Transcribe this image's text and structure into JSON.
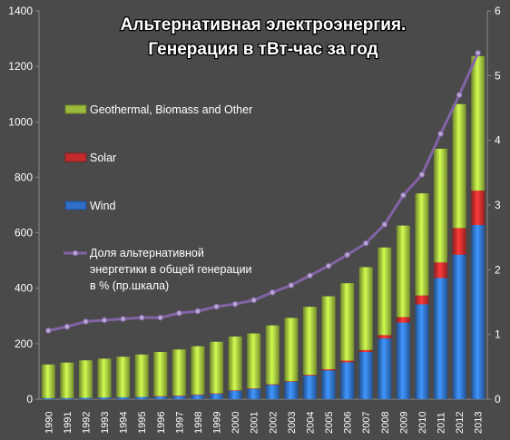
{
  "chart_data": {
    "type": "bar",
    "title_line1": "Альтернативная электроэнергия.",
    "title_line2": "Генерация в тВт-час за год",
    "categories": [
      "1990",
      "1991",
      "1992",
      "1993",
      "1994",
      "1995",
      "1996",
      "1997",
      "1998",
      "1999",
      "2000",
      "2001",
      "2002",
      "2003",
      "2004",
      "2005",
      "2006",
      "2007",
      "2008",
      "2009",
      "2010",
      "2011",
      "2012",
      "2013"
    ],
    "stacked": true,
    "left_axis": {
      "ylim": [
        0,
        1400
      ],
      "ticks": [
        0,
        200,
        400,
        600,
        800,
        1000,
        1200,
        1400
      ]
    },
    "right_axis": {
      "ylim": [
        0,
        6
      ],
      "ticks": [
        0,
        1,
        2,
        3,
        4,
        5,
        6
      ]
    },
    "series": [
      {
        "name": "Wind",
        "color": "#2f6fc8",
        "values": [
          4,
          4,
          5,
          6,
          7,
          8,
          10,
          12,
          16,
          20,
          31,
          38,
          52,
          63,
          85,
          104,
          133,
          170,
          219,
          276,
          342,
          437,
          521,
          628
        ]
      },
      {
        "name": "Solar",
        "color": "#c62b2b",
        "values": [
          0,
          0,
          0,
          0,
          0,
          0,
          1,
          1,
          1,
          1,
          1,
          1,
          2,
          2,
          3,
          4,
          6,
          7,
          12,
          20,
          32,
          56,
          96,
          124
        ]
      },
      {
        "name": "Geothermal, Biomass and Other",
        "color": "#9bbb3c",
        "values": [
          121,
          128,
          135,
          140,
          146,
          153,
          159,
          166,
          174,
          186,
          194,
          198,
          212,
          228,
          245,
          263,
          279,
          299,
          316,
          330,
          368,
          410,
          447,
          485
        ]
      }
    ],
    "line_series": {
      "name": "Доля альтернативной энергетики в общей генерации в % (пр.шкала)",
      "axis": "right",
      "color": "#8264a6",
      "values": [
        1.06,
        1.12,
        1.2,
        1.22,
        1.24,
        1.26,
        1.26,
        1.33,
        1.36,
        1.43,
        1.47,
        1.53,
        1.65,
        1.76,
        1.91,
        2.06,
        2.23,
        2.41,
        2.7,
        3.15,
        3.47,
        4.1,
        4.7,
        5.35
      ]
    },
    "legend": {
      "placement": "left-inside",
      "entries": [
        {
          "label": "Geothermal, Biomass and Other",
          "color": "#9bbb3c",
          "kind": "bar"
        },
        {
          "label": "Solar",
          "color": "#c62b2b",
          "kind": "bar"
        },
        {
          "label": "Wind",
          "color": "#2f6fc8",
          "kind": "bar"
        },
        {
          "label_lines": [
            "Доля альтернативной",
            "энергетики в общей генерации",
            "в % (пр.шкала)"
          ],
          "color": "#8264a6",
          "kind": "line"
        }
      ]
    }
  }
}
